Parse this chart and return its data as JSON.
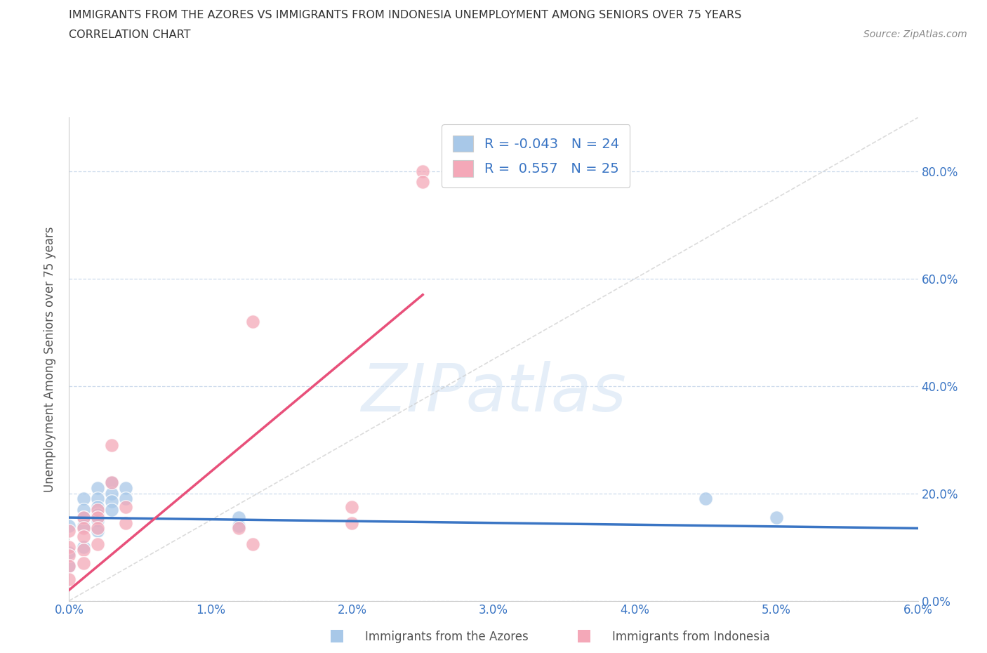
{
  "title_line1": "IMMIGRANTS FROM THE AZORES VS IMMIGRANTS FROM INDONESIA UNEMPLOYMENT AMONG SENIORS OVER 75 YEARS",
  "title_line2": "CORRELATION CHART",
  "source_text": "Source: ZipAtlas.com",
  "ylabel": "Unemployment Among Seniors over 75 years",
  "watermark": "ZIPatlas",
  "legend_label1": "Immigrants from the Azores",
  "legend_label2": "Immigrants from Indonesia",
  "R1": -0.043,
  "N1": 24,
  "R2": 0.557,
  "N2": 25,
  "color_azores": "#a8c8e8",
  "color_indonesia": "#f4a8b8",
  "color_azores_line": "#3a75c4",
  "color_indonesia_line": "#e8507a",
  "color_diag_line": "#cccccc",
  "xlim": [
    0.0,
    0.06
  ],
  "ylim": [
    0.0,
    0.9
  ],
  "xticks": [
    0.0,
    0.01,
    0.02,
    0.03,
    0.04,
    0.05,
    0.06
  ],
  "yticks": [
    0.0,
    0.2,
    0.4,
    0.6,
    0.8
  ],
  "xticklabels": [
    "0.0%",
    "1.0%",
    "2.0%",
    "3.0%",
    "4.0%",
    "5.0%",
    "6.0%"
  ],
  "yticklabels": [
    "0.0%",
    "20.0%",
    "40.0%",
    "60.0%",
    "80.0%"
  ],
  "azores_x": [
    0.0,
    0.0,
    0.0,
    0.001,
    0.001,
    0.001,
    0.001,
    0.001,
    0.002,
    0.002,
    0.002,
    0.002,
    0.002,
    0.002,
    0.003,
    0.003,
    0.003,
    0.003,
    0.004,
    0.004,
    0.012,
    0.012,
    0.045,
    0.05
  ],
  "azores_y": [
    0.14,
    0.09,
    0.065,
    0.19,
    0.17,
    0.155,
    0.14,
    0.1,
    0.21,
    0.19,
    0.175,
    0.16,
    0.15,
    0.13,
    0.22,
    0.2,
    0.185,
    0.17,
    0.21,
    0.19,
    0.155,
    0.14,
    0.19,
    0.155
  ],
  "indonesia_x": [
    0.0,
    0.0,
    0.0,
    0.0,
    0.0,
    0.001,
    0.001,
    0.001,
    0.001,
    0.001,
    0.002,
    0.002,
    0.002,
    0.002,
    0.003,
    0.003,
    0.004,
    0.004,
    0.012,
    0.013,
    0.013,
    0.02,
    0.02,
    0.025,
    0.025
  ],
  "indonesia_y": [
    0.13,
    0.1,
    0.085,
    0.065,
    0.04,
    0.155,
    0.135,
    0.12,
    0.095,
    0.07,
    0.17,
    0.155,
    0.135,
    0.105,
    0.29,
    0.22,
    0.175,
    0.145,
    0.135,
    0.105,
    0.52,
    0.175,
    0.145,
    0.8,
    0.78
  ],
  "azores_trend_x": [
    0.0,
    0.06
  ],
  "azores_trend_y": [
    0.155,
    0.135
  ],
  "indonesia_trend_x0": 0.0,
  "indonesia_trend_x1": 0.025,
  "indonesia_trend_y0": 0.02,
  "indonesia_trend_y1": 0.57
}
